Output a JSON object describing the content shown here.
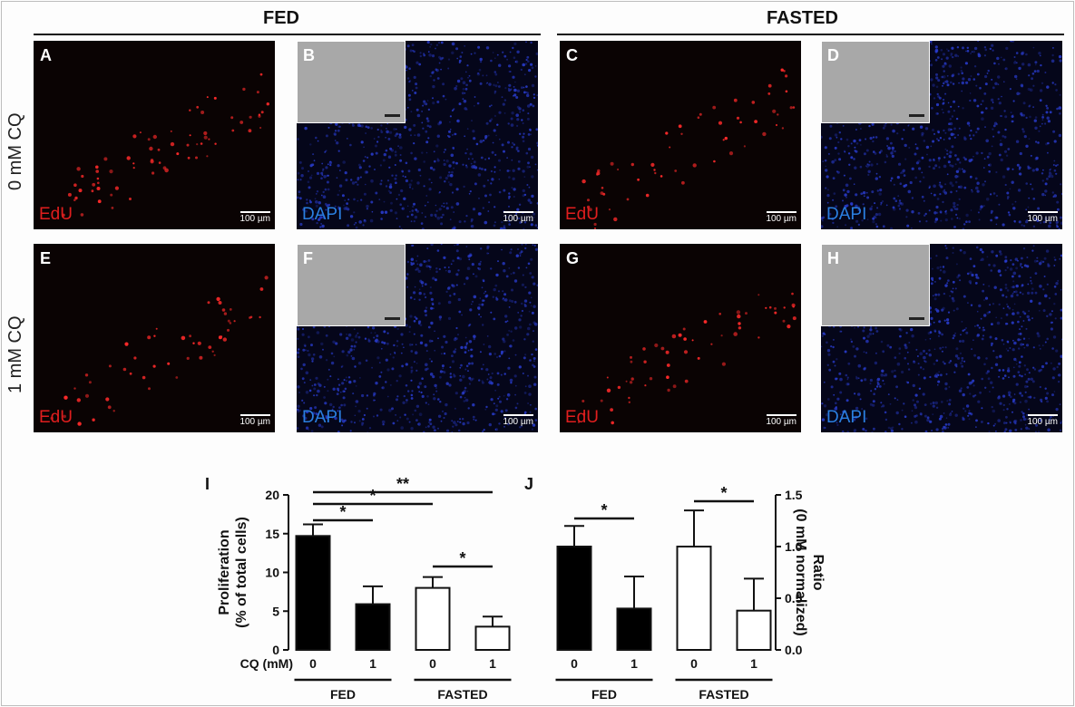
{
  "headers": {
    "fed": "FED",
    "fasted": "FASTED"
  },
  "row_labels": [
    "0 mM CQ",
    "1 mM CQ"
  ],
  "panels": [
    {
      "letter": "A",
      "stain": "EdU",
      "scale": "100 µm"
    },
    {
      "letter": "B",
      "stain": "DAPI",
      "scale": "100 µm"
    },
    {
      "letter": "C",
      "stain": "EdU",
      "scale": "100 µm"
    },
    {
      "letter": "D",
      "stain": "DAPI",
      "scale": "100 µm"
    },
    {
      "letter": "E",
      "stain": "EdU",
      "scale": "100 µm"
    },
    {
      "letter": "F",
      "stain": "DAPI",
      "scale": "100 µm"
    },
    {
      "letter": "G",
      "stain": "EdU",
      "scale": "100 µm"
    },
    {
      "letter": "H",
      "stain": "DAPI",
      "scale": "100 µm"
    }
  ],
  "colors": {
    "edu": "#e01e1e",
    "dapi": "#2a7fe0",
    "bar_filled": "#000000",
    "bar_open": "#ffffff"
  },
  "chart_data": [
    {
      "panel": "I",
      "type": "bar",
      "ylabel": "Proliferation (% of total cells)",
      "ylim": [
        0,
        20
      ],
      "yticks": [
        "0",
        "5",
        "10",
        "15",
        "20"
      ],
      "cq_label": "CQ (mM)",
      "categories": [
        "0",
        "1",
        "0",
        "1"
      ],
      "groups": [
        "FED",
        "FASTED"
      ],
      "values": [
        14.7,
        5.9,
        8.0,
        3.0
      ],
      "errors": [
        1.5,
        2.3,
        1.4,
        1.3
      ],
      "fills": [
        "filled",
        "filled",
        "open",
        "open"
      ],
      "significance": [
        {
          "from": 0,
          "to": 1,
          "label": "*"
        },
        {
          "from": 0,
          "to": 2,
          "label": "*"
        },
        {
          "from": 0,
          "to": 3,
          "label": "**"
        },
        {
          "from": 2,
          "to": 3,
          "label": "*"
        }
      ]
    },
    {
      "panel": "J",
      "type": "bar",
      "ylabel": "Ratio (0 mM normalized)",
      "ylim": [
        0,
        1.5
      ],
      "yticks": [
        "0.0",
        "0.5",
        "1.0",
        "1.5"
      ],
      "categories": [
        "0",
        "1",
        "0",
        "1"
      ],
      "groups": [
        "FED",
        "FASTED"
      ],
      "values": [
        1.0,
        0.4,
        1.0,
        0.38
      ],
      "errors": [
        0.2,
        0.31,
        0.35,
        0.31
      ],
      "fills": [
        "filled",
        "filled",
        "open",
        "open"
      ],
      "significance": [
        {
          "from": 0,
          "to": 1,
          "label": "*"
        },
        {
          "from": 2,
          "to": 3,
          "label": "*"
        }
      ]
    }
  ]
}
